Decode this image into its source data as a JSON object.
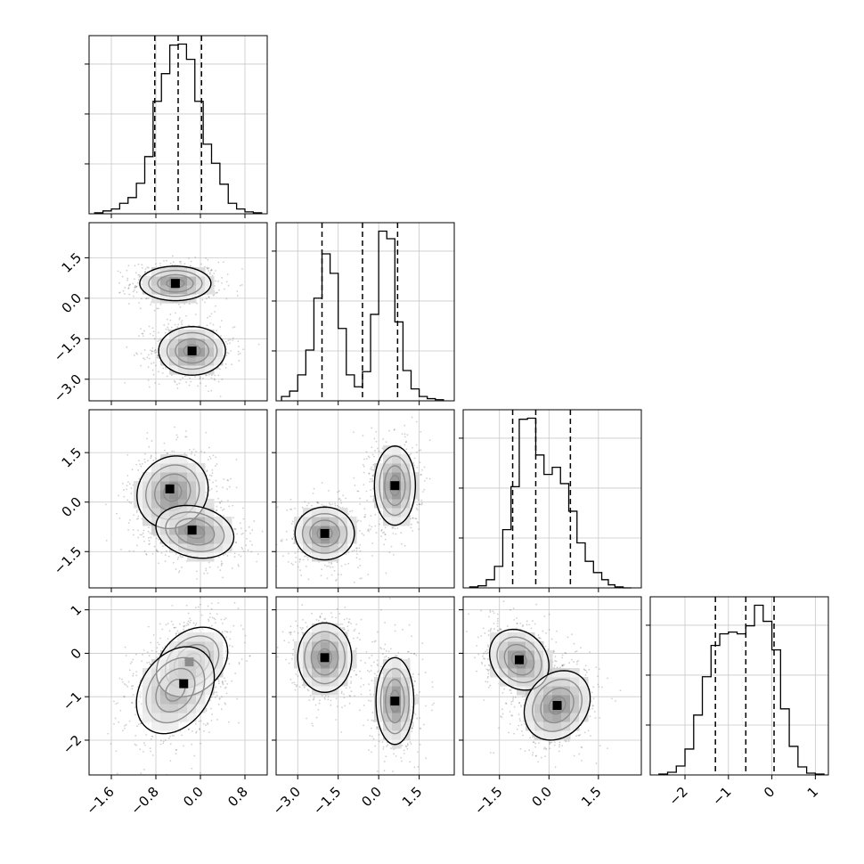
{
  "chart_data": {
    "type": "corner",
    "n_params": 4,
    "axis_labels": [
      "",
      "",
      "",
      ""
    ],
    "ranges": [
      [
        -2.0,
        1.2
      ],
      [
        -3.8,
        2.8
      ],
      [
        -2.6,
        2.8
      ],
      [
        -2.8,
        1.3
      ]
    ],
    "ticks": [
      {
        "values": [
          -1.6,
          -0.8,
          0.0,
          0.8
        ],
        "labels": [
          "−1.6",
          "−0.8",
          "0.0",
          "0.8"
        ]
      },
      {
        "values": [
          -3.0,
          -1.5,
          0.0,
          1.5
        ],
        "labels": [
          "−3.0",
          "−1.5",
          "0.0",
          "1.5"
        ]
      },
      {
        "values": [
          -1.5,
          0.0,
          1.5
        ],
        "labels": [
          "−1.5",
          "0.0",
          "1.5"
        ]
      },
      {
        "values": [
          -2,
          -1,
          0,
          1
        ],
        "labels": [
          "−2",
          "−1",
          "0",
          "1"
        ]
      }
    ],
    "quantiles": [
      [
        -0.82,
        -0.4,
        0.02
      ],
      [
        -2.1,
        -0.6,
        0.7
      ],
      [
        -1.1,
        -0.4,
        0.65
      ],
      [
        -1.3,
        -0.6,
        0.05
      ]
    ],
    "grid": true,
    "histograms": [
      {
        "param": 0,
        "bin_edges": [
          -1.9,
          -1.75,
          -1.6,
          -1.45,
          -1.3,
          -1.15,
          -1.0,
          -0.85,
          -0.7,
          -0.55,
          -0.4,
          -0.25,
          -0.1,
          0.05,
          0.2,
          0.35,
          0.5,
          0.65,
          0.8,
          0.95,
          1.1
        ],
        "counts": [
          1,
          3,
          5,
          11,
          17,
          32,
          60,
          118,
          147,
          177,
          178,
          162,
          118,
          73,
          53,
          31,
          11,
          5,
          2,
          1
        ]
      },
      {
        "param": 1,
        "bin_edges": [
          -3.6,
          -3.3,
          -3.0,
          -2.7,
          -2.4,
          -2.1,
          -1.8,
          -1.5,
          -1.2,
          -0.9,
          -0.6,
          -0.3,
          0.0,
          0.3,
          0.6,
          0.9,
          1.2,
          1.5,
          1.8,
          2.1,
          2.4
        ],
        "counts": [
          4,
          9,
          24,
          47,
          95,
          136,
          118,
          67,
          24,
          13,
          27,
          80,
          157,
          150,
          73,
          28,
          11,
          4,
          2,
          1
        ]
      },
      {
        "param": 2,
        "bin_edges": [
          -2.4,
          -2.15,
          -1.9,
          -1.65,
          -1.4,
          -1.15,
          -0.9,
          -0.65,
          -0.4,
          -0.15,
          0.1,
          0.35,
          0.6,
          0.85,
          1.1,
          1.35,
          1.6,
          1.8,
          2.0,
          2.25,
          2.5
        ],
        "counts": [
          1,
          2,
          8,
          21,
          57,
          99,
          165,
          166,
          130,
          111,
          118,
          102,
          75,
          44,
          26,
          15,
          8,
          3,
          1,
          0
        ]
      },
      {
        "param": 3,
        "bin_edges": [
          -2.6,
          -2.4,
          -2.2,
          -2.0,
          -1.8,
          -1.6,
          -1.4,
          -1.2,
          -1.0,
          -0.8,
          -0.6,
          -0.4,
          -0.2,
          0.0,
          0.2,
          0.4,
          0.6,
          0.8,
          1.0,
          1.2
        ],
        "counts": [
          1,
          3,
          10,
          29,
          67,
          110,
          145,
          158,
          160,
          158,
          167,
          190,
          172,
          140,
          74,
          32,
          9,
          2,
          1
        ]
      }
    ],
    "joint_panels": [
      {
        "x_param": 0,
        "y_param": 1,
        "components": [
          {
            "center": [
              -0.45,
              0.55
            ],
            "sigma": [
              0.32,
              0.32
            ],
            "corr": 0.0,
            "weight": 0.5,
            "peak": [
              -0.45,
              0.55
            ]
          },
          {
            "center": [
              -0.15,
              -1.95
            ],
            "sigma": [
              0.3,
              0.45
            ],
            "corr": 0.0,
            "weight": 0.5,
            "peak": [
              -0.15,
              -1.95
            ]
          }
        ]
      },
      {
        "x_param": 0,
        "y_param": 2,
        "components": [
          {
            "center": [
              -0.5,
              0.3
            ],
            "sigma": [
              0.32,
              0.55
            ],
            "corr": 0.1,
            "weight": 0.5,
            "peak": [
              -0.55,
              0.4
            ]
          },
          {
            "center": [
              -0.1,
              -0.9
            ],
            "sigma": [
              0.35,
              0.4
            ],
            "corr": -0.2,
            "weight": 0.5,
            "peak": [
              -0.15,
              -0.85
            ]
          }
        ]
      },
      {
        "x_param": 0,
        "y_param": 3,
        "components": [
          {
            "center": [
              -0.15,
              -0.2
            ],
            "sigma": [
              0.32,
              0.4
            ],
            "corr": 0.3,
            "weight": 0.5,
            "peak": [
              -0.2,
              -0.2
            ]
          },
          {
            "center": [
              -0.45,
              -0.85
            ],
            "sigma": [
              0.35,
              0.5
            ],
            "corr": 0.3,
            "weight": 0.5,
            "peak": [
              -0.3,
              -0.7
            ]
          }
        ]
      },
      {
        "x_param": 1,
        "y_param": 2,
        "components": [
          {
            "center": [
              -2.0,
              -0.95
            ],
            "sigma": [
              0.55,
              0.4
            ],
            "corr": 0.0,
            "weight": 0.5,
            "peak": [
              -2.0,
              -0.95
            ]
          },
          {
            "center": [
              0.6,
              0.5
            ],
            "sigma": [
              0.38,
              0.6
            ],
            "corr": 0.0,
            "weight": 0.5,
            "peak": [
              0.6,
              0.5
            ]
          }
        ]
      },
      {
        "x_param": 1,
        "y_param": 3,
        "components": [
          {
            "center": [
              -2.0,
              -0.1
            ],
            "sigma": [
              0.5,
              0.4
            ],
            "corr": 0.0,
            "weight": 0.5,
            "peak": [
              -2.0,
              -0.1
            ]
          },
          {
            "center": [
              0.6,
              -1.1
            ],
            "sigma": [
              0.35,
              0.5
            ],
            "corr": 0.0,
            "weight": 0.5,
            "peak": [
              0.6,
              -1.1
            ]
          }
        ]
      },
      {
        "x_param": 2,
        "y_param": 3,
        "components": [
          {
            "center": [
              -0.9,
              -0.15
            ],
            "sigma": [
              0.45,
              0.35
            ],
            "corr": -0.2,
            "weight": 0.5,
            "peak": [
              -0.9,
              -0.15
            ]
          },
          {
            "center": [
              0.25,
              -1.2
            ],
            "sigma": [
              0.5,
              0.4
            ],
            "corr": 0.2,
            "weight": 0.5,
            "peak": [
              0.25,
              -1.2
            ]
          }
        ]
      }
    ]
  }
}
